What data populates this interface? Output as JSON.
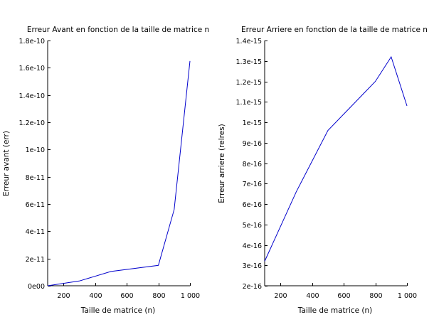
{
  "chart_data": [
    {
      "type": "line",
      "title": "Erreur Avant en fonction de la taille de matrice n",
      "xlabel": "Taille de matrice (n)",
      "ylabel": "Erreur avant (err)",
      "xlim": [
        100,
        1000
      ],
      "ylim": [
        0,
        1.8e-10
      ],
      "x_ticks": [
        200,
        400,
        600,
        800,
        1000
      ],
      "x_tick_labels": [
        "200",
        "400",
        "600",
        "800",
        "1 000"
      ],
      "y_ticks": [
        0,
        2e-11,
        4e-11,
        6e-11,
        8e-11,
        1e-10,
        1.2e-10,
        1.4e-10,
        1.6e-10,
        1.8e-10
      ],
      "y_tick_labels": [
        "0e00",
        "2e-11",
        "4e-11",
        "6e-11",
        "8e-11",
        "1e-10",
        "1.2e-10",
        "1.4e-10",
        "1.6e-10",
        "1.8e-10"
      ],
      "grid": false,
      "color": "#0000cc",
      "series": [
        {
          "x": [
            100,
            300,
            500,
            800,
            900,
            1000
          ],
          "y": [
            0,
            3.5e-12,
            1.05e-11,
            1.5e-11,
            5.6e-11,
            1.65e-10
          ]
        }
      ]
    },
    {
      "type": "line",
      "title": "Erreur Arriere en fonction de la taille de matrice n",
      "xlabel": "Taille de matrice (n)",
      "ylabel": "Erreur arriere (relres)",
      "xlim": [
        100,
        1000
      ],
      "ylim": [
        2e-16,
        1.4e-15
      ],
      "x_ticks": [
        200,
        400,
        600,
        800,
        1000
      ],
      "x_tick_labels": [
        "200",
        "400",
        "600",
        "800",
        "1 000"
      ],
      "y_ticks": [
        2e-16,
        3e-16,
        4e-16,
        5e-16,
        6e-16,
        7e-16,
        8e-16,
        9e-16,
        1e-15,
        1.1e-15,
        1.2e-15,
        1.3e-15,
        1.4e-15
      ],
      "y_tick_labels": [
        "2e-16",
        "3e-16",
        "4e-16",
        "5e-16",
        "6e-16",
        "7e-16",
        "8e-16",
        "9e-16",
        "1e-15",
        "1.1e-15",
        "1.2e-15",
        "1.3e-15",
        "1.4e-15"
      ],
      "grid": false,
      "color": "#0000cc",
      "series": [
        {
          "x": [
            100,
            300,
            500,
            800,
            900,
            1000
          ],
          "y": [
            3.2e-16,
            6.6e-16,
            9.6e-16,
            1.2e-15,
            1.32e-15,
            1.08e-15
          ]
        }
      ]
    }
  ]
}
